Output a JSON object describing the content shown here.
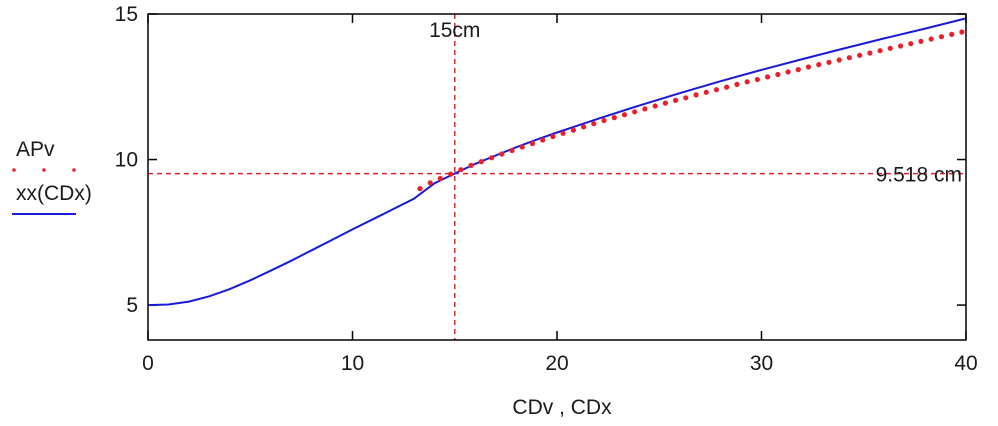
{
  "chart_data": {
    "type": "line",
    "xlabel": "CDv , CDx",
    "xlim": [
      0,
      40
    ],
    "ylim": [
      3.8,
      15
    ],
    "xticks": [
      0,
      10,
      20,
      30,
      40
    ],
    "yticks": [
      5,
      10,
      15
    ],
    "grid": false,
    "legend_position": "left",
    "series": [
      {
        "name": "APv",
        "style": "points",
        "color": "#e8202a",
        "x": [
          13.3,
          13.8,
          14.3,
          14.8,
          15.3,
          15.8,
          16.3,
          16.8,
          17.3,
          17.8,
          18.3,
          18.8,
          19.3,
          19.8,
          20.3,
          20.8,
          21.3,
          21.8,
          22.3,
          22.8,
          23.3,
          23.8,
          24.3,
          24.8,
          25.3,
          25.8,
          26.3,
          26.8,
          27.3,
          27.8,
          28.3,
          28.8,
          29.3,
          29.8,
          30.3,
          30.8,
          31.3,
          31.8,
          32.3,
          32.8,
          33.3,
          33.8,
          34.3,
          34.8,
          35.3,
          35.8,
          36.3,
          36.8,
          37.3,
          37.8,
          38.3,
          38.8,
          39.3,
          39.8
        ],
        "y": [
          9.0,
          9.2,
          9.35,
          9.5,
          9.65,
          9.8,
          9.93,
          10.06,
          10.19,
          10.31,
          10.43,
          10.55,
          10.67,
          10.79,
          10.9,
          11.01,
          11.12,
          11.23,
          11.34,
          11.44,
          11.54,
          11.64,
          11.74,
          11.84,
          11.94,
          12.03,
          12.12,
          12.22,
          12.31,
          12.4,
          12.49,
          12.58,
          12.67,
          12.75,
          12.84,
          12.92,
          13.01,
          13.09,
          13.18,
          13.26,
          13.34,
          13.42,
          13.5,
          13.58,
          13.66,
          13.74,
          13.82,
          13.9,
          13.98,
          14.06,
          14.14,
          14.22,
          14.3,
          14.38
        ]
      },
      {
        "name": "xx(CDx)",
        "style": "line",
        "color": "#1a1ad6",
        "x": [
          0,
          1,
          2,
          3,
          4,
          5,
          6,
          7,
          8,
          9,
          10,
          11,
          12,
          13,
          14,
          15,
          16,
          17,
          18,
          19,
          20,
          22,
          24,
          26,
          28,
          30,
          32,
          34,
          36,
          38,
          40
        ],
        "y": [
          5.0,
          5.02,
          5.12,
          5.3,
          5.55,
          5.85,
          6.18,
          6.52,
          6.88,
          7.24,
          7.6,
          7.95,
          8.3,
          8.65,
          9.18,
          9.52,
          9.85,
          10.14,
          10.42,
          10.68,
          10.93,
          11.4,
          11.85,
          12.28,
          12.69,
          13.08,
          13.45,
          13.81,
          14.16,
          14.5,
          14.85
        ]
      }
    ],
    "markers": [
      {
        "axis": "x",
        "value": 15,
        "label": "15cm",
        "color": "#e8202a"
      },
      {
        "axis": "y",
        "value": 9.518,
        "label": "9.518 cm",
        "color": "#e8202a"
      }
    ]
  }
}
